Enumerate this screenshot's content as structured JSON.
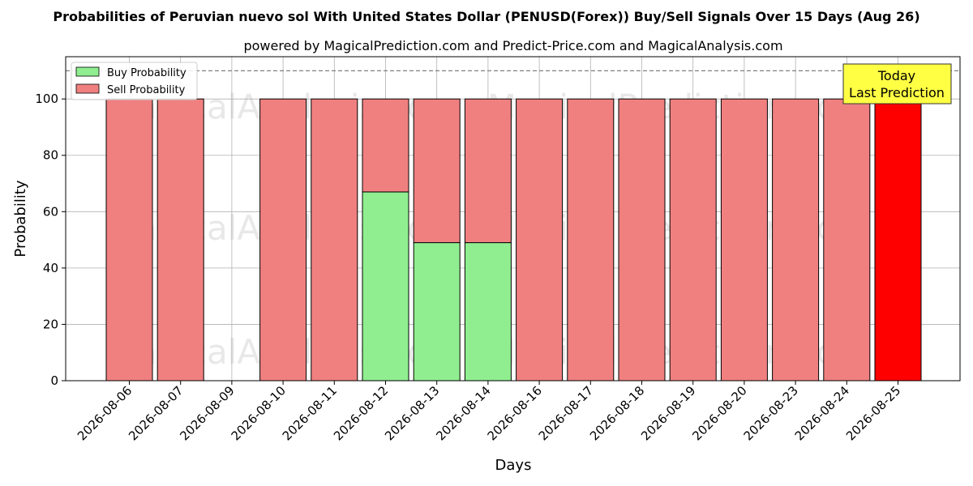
{
  "chart_data": {
    "type": "bar",
    "stacked": true,
    "title": "Probabilities of Peruvian nuevo sol With United States Dollar (PENUSD(Forex)) Buy/Sell Signals Over 15 Days (Aug 26)",
    "subtitle": "powered by MagicalPrediction.com and Predict-Price.com and MagicalAnalysis.com",
    "xlabel": "Days",
    "ylabel": "Probability",
    "ylim": [
      0,
      115
    ],
    "yticks": [
      0,
      20,
      40,
      60,
      80,
      100
    ],
    "grid": true,
    "legend_position": "top-left",
    "categories": [
      "2026-08-06",
      "2026-08-07",
      "2026-08-09",
      "2026-08-10",
      "2026-08-11",
      "2026-08-12",
      "2026-08-13",
      "2026-08-14",
      "2026-08-16",
      "2026-08-17",
      "2026-08-18",
      "2026-08-19",
      "2026-08-20",
      "2026-08-23",
      "2026-08-24",
      "2026-08-25"
    ],
    "series": [
      {
        "name": "Buy Probability",
        "color": "#90ee90",
        "values": [
          0,
          0,
          0,
          0,
          0,
          67,
          49,
          49,
          0,
          0,
          0,
          0,
          0,
          0,
          0,
          0
        ]
      },
      {
        "name": "Sell Probability",
        "color": "#f08080",
        "values": [
          100,
          100,
          0,
          100,
          100,
          33,
          51,
          51,
          100,
          100,
          100,
          100,
          100,
          100,
          100,
          100
        ]
      }
    ],
    "highlight": {
      "index": 15,
      "color": "#ff0000"
    },
    "reference_line": {
      "y": 110,
      "style": "dashed",
      "color": "#808080"
    },
    "annotation": {
      "lines": [
        "Today",
        "Last Prediction"
      ],
      "background": "#ffff44"
    },
    "watermark": [
      "MagicalAnalysis.com",
      "MagicalPrediction.com"
    ]
  }
}
